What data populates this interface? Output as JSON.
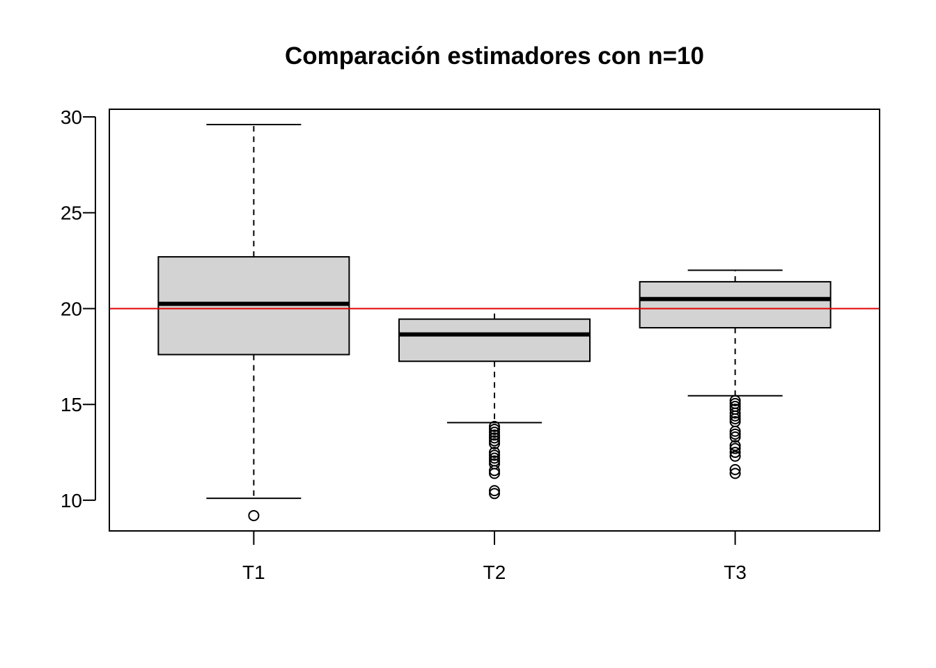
{
  "chart_data": {
    "type": "boxplot",
    "title": "Comparación estimadores con n=10",
    "xlabel": "",
    "ylabel": "",
    "categories": [
      "T1",
      "T2",
      "T3"
    ],
    "ylim": [
      8.4,
      30.4
    ],
    "yticks": [
      10,
      15,
      20,
      25,
      30
    ],
    "reference_line": {
      "y": 20,
      "color": "#e00000"
    },
    "box_fill": "#d3d3d3",
    "boxes": [
      {
        "name": "T1",
        "whisker_low": 10.1,
        "q1": 17.6,
        "median": 20.25,
        "q3": 22.7,
        "whisker_high": 29.6,
        "outliers": [
          9.2
        ]
      },
      {
        "name": "T2",
        "whisker_low": 14.05,
        "q1": 17.25,
        "median": 18.65,
        "q3": 19.45,
        "whisker_high": 20.0,
        "outliers": [
          13.85,
          13.7,
          13.55,
          13.4,
          13.25,
          13.1,
          12.95,
          12.5,
          12.35,
          12.2,
          12.05,
          11.9,
          11.55,
          11.4,
          10.5,
          10.35
        ]
      },
      {
        "name": "T3",
        "whisker_low": 15.45,
        "q1": 19.0,
        "median": 20.5,
        "q3": 21.4,
        "whisker_high": 22.0,
        "outliers": [
          15.2,
          15.05,
          14.9,
          14.75,
          14.55,
          14.4,
          14.25,
          14.1,
          13.6,
          13.45,
          13.3,
          12.85,
          12.7,
          12.5,
          12.3,
          11.6,
          11.4
        ]
      }
    ]
  }
}
